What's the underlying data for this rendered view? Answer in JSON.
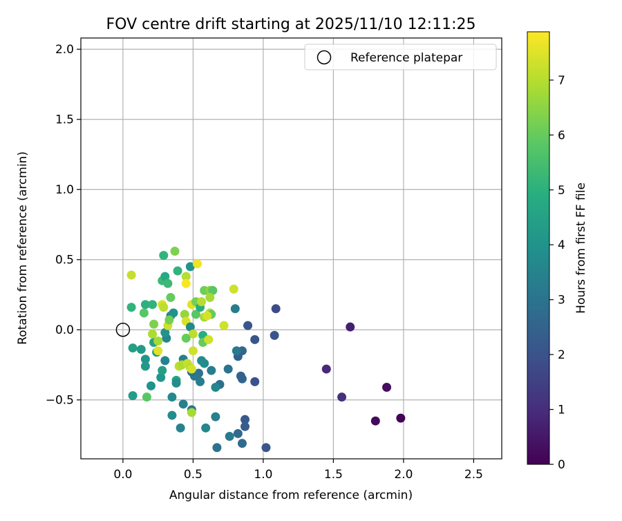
{
  "chart_data": {
    "type": "scatter",
    "title": "FOV centre drift starting at 2025/11/10 12:11:25",
    "xlabel": "Angular distance from reference (arcmin)",
    "ylabel": "Rotation from reference (arcmin)",
    "xlim": [
      -0.3,
      2.7
    ],
    "ylim": [
      -0.92,
      2.08
    ],
    "xticks": [
      0.0,
      0.5,
      1.0,
      1.5,
      2.0,
      2.5
    ],
    "xtick_labels": [
      "0.0",
      "0.5",
      "1.0",
      "1.5",
      "2.0",
      "2.5"
    ],
    "yticks": [
      -0.5,
      0.0,
      0.5,
      1.0,
      1.5,
      2.0
    ],
    "ytick_labels": [
      "−0.5",
      "0.0",
      "0.5",
      "1.0",
      "1.5",
      "2.0"
    ],
    "grid": true,
    "legend": {
      "position": "upper-right",
      "entries": [
        "Reference platepar"
      ]
    },
    "reference_point": {
      "x": 0.0,
      "y": 0.0,
      "label": "Reference platepar"
    },
    "colorbar": {
      "label": "Hours from first FF file",
      "range": [
        0,
        7.88
      ],
      "ticks": [
        0,
        1,
        2,
        3,
        4,
        5,
        6,
        7
      ],
      "tick_labels": [
        "0",
        "1",
        "2",
        "3",
        "4",
        "5",
        "6",
        "7"
      ],
      "colormap": "viridis"
    },
    "points": [
      {
        "x": 1.98,
        "y": -0.63,
        "h": 0.05
      },
      {
        "x": 1.8,
        "y": -0.65,
        "h": 0.2
      },
      {
        "x": 1.88,
        "y": -0.41,
        "h": 0.3
      },
      {
        "x": 1.62,
        "y": 0.02,
        "h": 0.7
      },
      {
        "x": 1.45,
        "y": -0.28,
        "h": 0.9
      },
      {
        "x": 1.56,
        "y": -0.48,
        "h": 1.1
      },
      {
        "x": 1.09,
        "y": 0.15,
        "h": 1.8
      },
      {
        "x": 1.08,
        "y": -0.04,
        "h": 2.0
      },
      {
        "x": 1.02,
        "y": -0.84,
        "h": 2.1
      },
      {
        "x": 0.94,
        "y": -0.07,
        "h": 2.1
      },
      {
        "x": 0.94,
        "y": -0.37,
        "h": 2.0
      },
      {
        "x": 0.89,
        "y": 0.03,
        "h": 2.1
      },
      {
        "x": 0.87,
        "y": -0.64,
        "h": 2.2
      },
      {
        "x": 0.87,
        "y": -0.69,
        "h": 2.3
      },
      {
        "x": 0.85,
        "y": -0.81,
        "h": 2.7
      },
      {
        "x": 0.85,
        "y": -0.35,
        "h": 2.6
      },
      {
        "x": 0.84,
        "y": -0.33,
        "h": 2.5
      },
      {
        "x": 0.85,
        "y": -0.15,
        "h": 2.6
      },
      {
        "x": 0.82,
        "y": -0.19,
        "h": 2.4
      },
      {
        "x": 0.81,
        "y": -0.15,
        "h": 3.2
      },
      {
        "x": 0.82,
        "y": -0.74,
        "h": 2.7
      },
      {
        "x": 0.8,
        "y": 0.15,
        "h": 3.3
      },
      {
        "x": 0.75,
        "y": -0.28,
        "h": 3.0
      },
      {
        "x": 0.76,
        "y": -0.76,
        "h": 3.2
      },
      {
        "x": 0.69,
        "y": -0.39,
        "h": 2.9
      },
      {
        "x": 0.67,
        "y": -0.84,
        "h": 3.0
      },
      {
        "x": 0.66,
        "y": -0.62,
        "h": 3.4
      },
      {
        "x": 0.66,
        "y": -0.41,
        "h": 3.6
      },
      {
        "x": 0.63,
        "y": -0.29,
        "h": 3.3
      },
      {
        "x": 0.59,
        "y": -0.7,
        "h": 3.6
      },
      {
        "x": 0.58,
        "y": -0.24,
        "h": 3.8
      },
      {
        "x": 0.56,
        "y": -0.22,
        "h": 3.8
      },
      {
        "x": 0.55,
        "y": -0.37,
        "h": 3.3
      },
      {
        "x": 0.54,
        "y": -0.31,
        "h": 3.0
      },
      {
        "x": 0.51,
        "y": -0.33,
        "h": 3.1
      },
      {
        "x": 0.49,
        "y": -0.3,
        "h": 2.9
      },
      {
        "x": 0.49,
        "y": -0.57,
        "h": 3.0
      },
      {
        "x": 0.43,
        "y": -0.53,
        "h": 3.4
      },
      {
        "x": 0.41,
        "y": -0.7,
        "h": 3.5
      },
      {
        "x": 0.35,
        "y": -0.61,
        "h": 3.8
      },
      {
        "x": 0.35,
        "y": -0.48,
        "h": 3.7
      },
      {
        "x": 0.38,
        "y": -0.36,
        "h": 4.6
      },
      {
        "x": 0.38,
        "y": -0.38,
        "h": 3.8
      },
      {
        "x": 0.43,
        "y": -0.21,
        "h": 3.3
      },
      {
        "x": 0.3,
        "y": -0.22,
        "h": 3.5
      },
      {
        "x": 0.31,
        "y": -0.06,
        "h": 3.6
      },
      {
        "x": 0.3,
        "y": -0.02,
        "h": 4.0
      },
      {
        "x": 0.34,
        "y": 0.1,
        "h": 3.6
      },
      {
        "x": 0.36,
        "y": 0.12,
        "h": 4.0
      },
      {
        "x": 0.27,
        "y": -0.34,
        "h": 4.1
      },
      {
        "x": 0.28,
        "y": -0.29,
        "h": 4.4
      },
      {
        "x": 0.24,
        "y": -0.16,
        "h": 4.2
      },
      {
        "x": 0.22,
        "y": -0.09,
        "h": 4.5
      },
      {
        "x": 0.2,
        "y": -0.4,
        "h": 4.0
      },
      {
        "x": 0.16,
        "y": -0.26,
        "h": 4.2
      },
      {
        "x": 0.16,
        "y": -0.21,
        "h": 4.1
      },
      {
        "x": 0.13,
        "y": -0.14,
        "h": 4.2
      },
      {
        "x": 0.07,
        "y": -0.13,
        "h": 4.4
      },
      {
        "x": 0.07,
        "y": -0.47,
        "h": 4.3
      },
      {
        "x": 0.17,
        "y": -0.48,
        "h": 5.8
      },
      {
        "x": 0.06,
        "y": 0.16,
        "h": 5.1
      },
      {
        "x": 0.06,
        "y": 0.39,
        "h": 7.2
      },
      {
        "x": 0.15,
        "y": 0.12,
        "h": 5.8
      },
      {
        "x": 0.16,
        "y": 0.18,
        "h": 5.0
      },
      {
        "x": 0.21,
        "y": 0.18,
        "h": 5.1
      },
      {
        "x": 0.22,
        "y": 0.04,
        "h": 6.3
      },
      {
        "x": 0.21,
        "y": -0.03,
        "h": 6.9
      },
      {
        "x": 0.25,
        "y": -0.08,
        "h": 6.8
      },
      {
        "x": 0.25,
        "y": -0.15,
        "h": 7.5
      },
      {
        "x": 0.28,
        "y": 0.18,
        "h": 7.4
      },
      {
        "x": 0.29,
        "y": 0.16,
        "h": 7.1
      },
      {
        "x": 0.32,
        "y": 0.03,
        "h": 7.3
      },
      {
        "x": 0.33,
        "y": 0.07,
        "h": 6.2
      },
      {
        "x": 0.34,
        "y": 0.23,
        "h": 6.0
      },
      {
        "x": 0.28,
        "y": 0.35,
        "h": 5.3
      },
      {
        "x": 0.3,
        "y": 0.38,
        "h": 4.8
      },
      {
        "x": 0.32,
        "y": 0.33,
        "h": 5.3
      },
      {
        "x": 0.29,
        "y": 0.53,
        "h": 5.1
      },
      {
        "x": 0.37,
        "y": 0.56,
        "h": 6.3
      },
      {
        "x": 0.39,
        "y": 0.42,
        "h": 5.1
      },
      {
        "x": 0.45,
        "y": 0.38,
        "h": 7.0
      },
      {
        "x": 0.45,
        "y": 0.33,
        "h": 7.8
      },
      {
        "x": 0.48,
        "y": 0.45,
        "h": 4.0
      },
      {
        "x": 0.53,
        "y": 0.47,
        "h": 7.7
      },
      {
        "x": 0.44,
        "y": 0.11,
        "h": 6.6
      },
      {
        "x": 0.45,
        "y": 0.06,
        "h": 7.4
      },
      {
        "x": 0.48,
        "y": 0.02,
        "h": 3.7
      },
      {
        "x": 0.5,
        "y": -0.03,
        "h": 7.1
      },
      {
        "x": 0.45,
        "y": -0.06,
        "h": 6.0
      },
      {
        "x": 0.49,
        "y": 0.18,
        "h": 7.5
      },
      {
        "x": 0.52,
        "y": 0.11,
        "h": 5.8
      },
      {
        "x": 0.52,
        "y": 0.2,
        "h": 6.2
      },
      {
        "x": 0.55,
        "y": 0.16,
        "h": 4.9
      },
      {
        "x": 0.56,
        "y": 0.2,
        "h": 7.0
      },
      {
        "x": 0.58,
        "y": 0.28,
        "h": 6.1
      },
      {
        "x": 0.62,
        "y": 0.28,
        "h": 6.5
      },
      {
        "x": 0.64,
        "y": 0.28,
        "h": 5.8
      },
      {
        "x": 0.62,
        "y": 0.23,
        "h": 6.8
      },
      {
        "x": 0.62,
        "y": 0.12,
        "h": 7.0
      },
      {
        "x": 0.63,
        "y": 0.11,
        "h": 6.0
      },
      {
        "x": 0.58,
        "y": 0.09,
        "h": 6.8
      },
      {
        "x": 0.6,
        "y": 0.1,
        "h": 7.4
      },
      {
        "x": 0.57,
        "y": -0.04,
        "h": 4.9
      },
      {
        "x": 0.57,
        "y": -0.09,
        "h": 6.0
      },
      {
        "x": 0.61,
        "y": -0.07,
        "h": 7.3
      },
      {
        "x": 0.5,
        "y": -0.15,
        "h": 7.3
      },
      {
        "x": 0.4,
        "y": -0.26,
        "h": 7.1
      },
      {
        "x": 0.42,
        "y": -0.25,
        "h": 6.9
      },
      {
        "x": 0.46,
        "y": -0.24,
        "h": 7.2
      },
      {
        "x": 0.48,
        "y": -0.27,
        "h": 7.0
      },
      {
        "x": 0.49,
        "y": -0.28,
        "h": 7.4
      },
      {
        "x": 0.49,
        "y": -0.59,
        "h": 6.8
      },
      {
        "x": 0.72,
        "y": 0.03,
        "h": 7.3
      },
      {
        "x": 0.79,
        "y": 0.29,
        "h": 7.3
      }
    ]
  }
}
